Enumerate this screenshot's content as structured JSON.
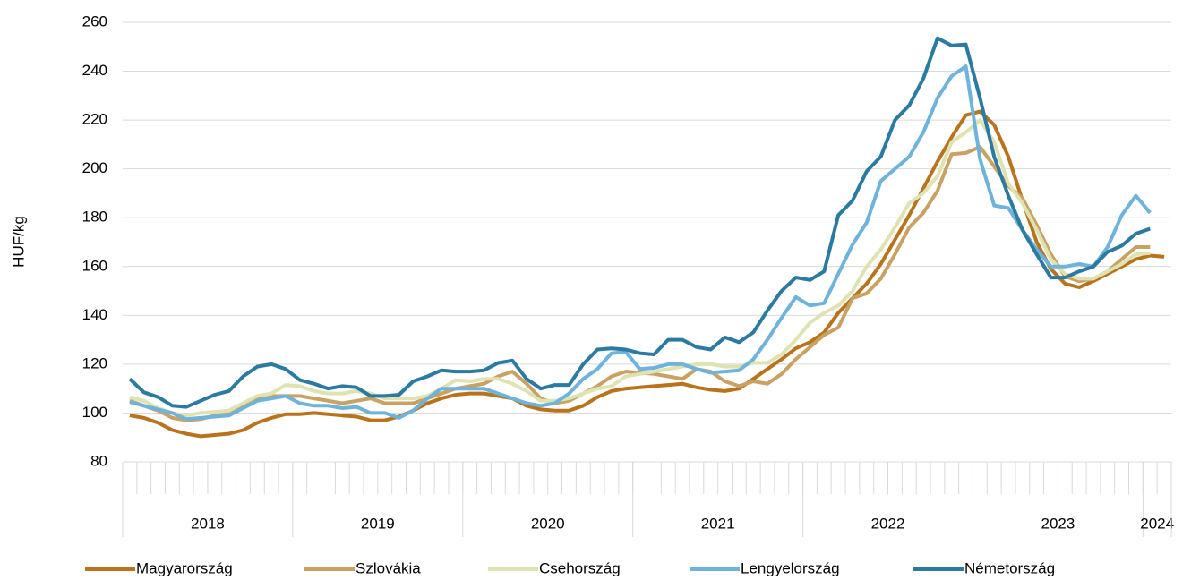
{
  "chart_data": {
    "type": "line",
    "y_label": "HUF/kg",
    "ylim": [
      80,
      260
    ],
    "yticks": [
      80,
      100,
      120,
      140,
      160,
      180,
      200,
      220,
      240,
      260
    ],
    "grid": true,
    "legend": "bottom",
    "categories": [
      null,
      null,
      null,
      null,
      null,
      null,
      null,
      null,
      null,
      null,
      null,
      null,
      null,
      null,
      null,
      null,
      null,
      null,
      null,
      null,
      null,
      null,
      null,
      null,
      null,
      null,
      null,
      null,
      null,
      null,
      null,
      null,
      null,
      null,
      null,
      null,
      null,
      null,
      null,
      null,
      null,
      null,
      null,
      null,
      null,
      null,
      null,
      null,
      null,
      null,
      null,
      null,
      null,
      null,
      null,
      null,
      null,
      null,
      null,
      null,
      null,
      null,
      null,
      null,
      null,
      null,
      null,
      null,
      null,
      null,
      null,
      null,
      null,
      null
    ],
    "year_groups": [
      {
        "label": "2018",
        "count": 12
      },
      {
        "label": "2019",
        "count": 12
      },
      {
        "label": "2020",
        "count": 12
      },
      {
        "label": "2021",
        "count": 12
      },
      {
        "label": "2022",
        "count": 12
      },
      {
        "label": "2023",
        "count": 12
      },
      {
        "label": "2024",
        "count": 2
      }
    ],
    "series": [
      {
        "name": "Magyarország",
        "color": "#b8731c",
        "values": [
          99,
          98,
          96,
          93,
          91.5,
          90.5,
          91,
          91.5,
          93,
          96,
          98,
          99.5,
          99.5,
          100,
          99.5,
          99,
          98.5,
          97,
          97,
          98.5,
          101,
          104,
          106,
          107.5,
          108,
          108,
          107,
          106,
          103,
          101.5,
          101,
          101,
          103,
          106.5,
          109,
          110,
          110.5,
          111,
          111.5,
          112,
          110.5,
          109.5,
          109,
          110,
          114,
          118,
          122,
          126.5,
          129,
          133,
          141,
          147,
          153,
          161,
          171,
          181,
          192,
          203,
          213,
          222,
          223.5,
          218,
          205,
          187,
          170,
          159,
          153,
          151.5,
          154,
          157,
          160,
          163,
          164.5,
          164
        ]
      },
      {
        "name": "Szlovákia",
        "color": "#c9a263",
        "values": [
          105,
          103,
          101,
          98,
          97,
          97.5,
          99,
          100,
          103,
          106,
          107,
          107,
          107,
          106,
          105,
          104,
          105,
          106,
          104,
          104,
          104,
          106,
          108,
          110,
          111,
          112,
          115,
          117,
          112,
          106,
          104,
          105,
          108,
          111,
          115,
          117,
          116.5,
          116,
          115,
          114,
          118,
          117,
          113,
          111,
          113,
          112,
          116,
          122,
          127,
          132,
          135,
          147,
          149,
          155,
          165,
          176,
          182,
          191,
          206,
          206.5,
          209,
          201,
          193,
          188,
          177,
          165,
          156,
          154,
          155,
          158,
          163,
          168,
          168,
          null
        ]
      },
      {
        "name": "Csehország",
        "color": "#dfe3b2",
        "values": [
          106.5,
          105,
          102,
          100,
          99,
          100,
          100.5,
          101,
          104,
          107,
          108,
          111.5,
          111,
          109,
          108,
          108,
          109,
          108,
          106,
          106,
          106,
          107,
          110,
          113.5,
          113,
          114,
          114,
          112,
          109,
          105,
          105,
          106,
          108,
          110,
          111,
          115,
          116,
          117,
          118,
          119,
          120,
          120,
          119,
          119,
          120.5,
          120.5,
          124,
          130,
          137,
          141,
          144,
          150,
          160,
          167,
          176,
          186,
          190,
          197,
          211,
          215,
          220,
          211,
          194,
          186,
          175,
          163,
          157,
          155,
          155,
          158,
          161,
          165,
          165.5,
          null
        ]
      },
      {
        "name": "Lengyelország",
        "color": "#6db3dc",
        "values": [
          104.5,
          103,
          101.5,
          100,
          97.5,
          98,
          98.5,
          99,
          102,
          105,
          106,
          107,
          104,
          103,
          103,
          102,
          102.5,
          100,
          100,
          98,
          101,
          106,
          110,
          110,
          110,
          110,
          108,
          106,
          104,
          103,
          104,
          108,
          114,
          118,
          124.5,
          125,
          118,
          118.5,
          120,
          120,
          118,
          116.5,
          117,
          117.5,
          122,
          130,
          139,
          147.5,
          144,
          145,
          157,
          169,
          178,
          195,
          200,
          205,
          215,
          229,
          238,
          242,
          204,
          185,
          184,
          175,
          167,
          160,
          160,
          161,
          160,
          168,
          181,
          189,
          182,
          null
        ]
      },
      {
        "name": "Németország",
        "color": "#2a7aa1",
        "values": [
          114,
          108.5,
          106.5,
          103,
          102.5,
          105,
          107.5,
          109,
          115,
          119,
          120,
          118,
          113.5,
          112,
          110,
          111,
          110.5,
          107,
          107,
          107.5,
          113,
          115,
          117.5,
          117,
          117,
          117.5,
          120.5,
          121.5,
          114,
          110,
          111.5,
          111.5,
          120,
          126,
          126.5,
          126,
          124.5,
          124,
          130,
          130,
          127,
          126,
          131,
          129,
          133,
          142,
          150,
          155.5,
          154.5,
          158,
          181,
          187,
          199,
          205,
          220,
          226,
          237,
          253.5,
          250.5,
          251,
          229,
          205,
          189,
          175,
          165,
          155.5,
          155.5,
          158,
          160,
          166,
          168.5,
          173.5,
          175.5,
          null
        ]
      }
    ]
  }
}
